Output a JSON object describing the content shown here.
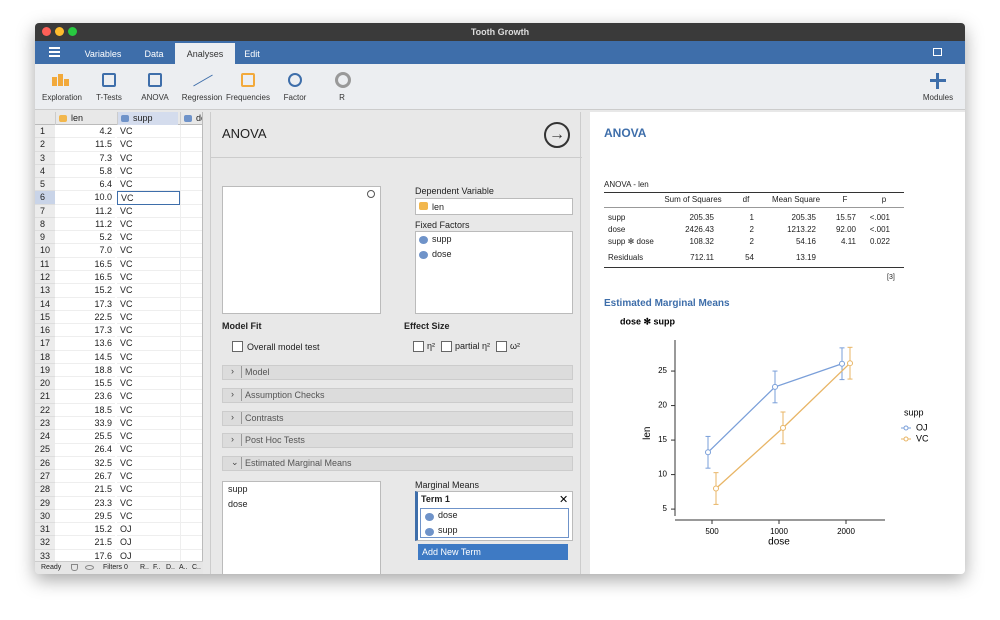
{
  "window": {
    "title": "Tooth Growth"
  },
  "menu": {
    "tabs": [
      "Variables",
      "Data",
      "Analyses",
      "Edit"
    ],
    "active": 2
  },
  "toolbar": {
    "items": [
      "Exploration",
      "T-Tests",
      "ANOVA",
      "Regression",
      "Frequencies",
      "Factor",
      "R"
    ],
    "modules": "Modules"
  },
  "spreadsheet": {
    "columns": [
      "len",
      "supp",
      "dose"
    ],
    "rows": [
      [
        1,
        "4.2",
        "VC"
      ],
      [
        2,
        "11.5",
        "VC"
      ],
      [
        3,
        "7.3",
        "VC"
      ],
      [
        4,
        "5.8",
        "VC"
      ],
      [
        5,
        "6.4",
        "VC"
      ],
      [
        6,
        "10.0",
        "VC"
      ],
      [
        7,
        "11.2",
        "VC"
      ],
      [
        8,
        "11.2",
        "VC"
      ],
      [
        9,
        "5.2",
        "VC"
      ],
      [
        10,
        "7.0",
        "VC"
      ],
      [
        11,
        "16.5",
        "VC"
      ],
      [
        12,
        "16.5",
        "VC"
      ],
      [
        13,
        "15.2",
        "VC"
      ],
      [
        14,
        "17.3",
        "VC"
      ],
      [
        15,
        "22.5",
        "VC"
      ],
      [
        16,
        "17.3",
        "VC"
      ],
      [
        17,
        "13.6",
        "VC"
      ],
      [
        18,
        "14.5",
        "VC"
      ],
      [
        19,
        "18.8",
        "VC"
      ],
      [
        20,
        "15.5",
        "VC"
      ],
      [
        21,
        "23.6",
        "VC"
      ],
      [
        22,
        "18.5",
        "VC"
      ],
      [
        23,
        "33.9",
        "VC"
      ],
      [
        24,
        "25.5",
        "VC"
      ],
      [
        25,
        "26.4",
        "VC"
      ],
      [
        26,
        "32.5",
        "VC"
      ],
      [
        27,
        "26.7",
        "VC"
      ],
      [
        28,
        "21.5",
        "VC"
      ],
      [
        29,
        "23.3",
        "VC"
      ],
      [
        30,
        "29.5",
        "VC"
      ],
      [
        31,
        "15.2",
        "OJ"
      ],
      [
        32,
        "21.5",
        "OJ"
      ],
      [
        33,
        "17.6",
        "OJ"
      ]
    ],
    "selected_row": 5
  },
  "status": {
    "ready": "Ready",
    "filters": "Filters 0",
    "columns": [
      "R..",
      "F..",
      "D..",
      "A..",
      "C.."
    ]
  },
  "options": {
    "title": "ANOVA",
    "dependent_label": "Dependent Variable",
    "dependent": "len",
    "factors_label": "Fixed Factors",
    "factors": [
      "supp",
      "dose"
    ],
    "model_fit": "Model Fit",
    "overall": "Overall model test",
    "effect_size": "Effect Size",
    "effects": [
      "η²",
      "partial η²",
      "ω²"
    ],
    "sections": [
      "Model",
      "Assumption Checks",
      "Contrasts",
      "Post Hoc Tests",
      "Estimated Marginal Means"
    ],
    "available": [
      "supp",
      "dose"
    ],
    "marginal_label": "Marginal Means",
    "term": "Term 1",
    "term_items": [
      "dose",
      "supp"
    ],
    "add_term": "Add New Term"
  },
  "results": {
    "title": "ANOVA",
    "table_title": "ANOVA - len",
    "headers": [
      "Sum of Squares",
      "df",
      "Mean Square",
      "F",
      "p"
    ],
    "rows": [
      [
        "supp",
        "205.35",
        "1",
        "205.35",
        "15.57",
        "<.001"
      ],
      [
        "dose",
        "2426.43",
        "2",
        "1213.22",
        "92.00",
        "<.001"
      ],
      [
        "supp ✻ dose",
        "108.32",
        "2",
        "54.16",
        "4.11",
        "0.022"
      ],
      [
        "Residuals",
        "712.11",
        "54",
        "13.19"
      ]
    ],
    "footnote": "[3]",
    "emm_title": "Estimated Marginal Means"
  },
  "chart_data": {
    "type": "line",
    "title": "dose ✻ supp",
    "x_label": "dose",
    "y_label": "len",
    "categories": [
      "500",
      "1000",
      "2000"
    ],
    "series": [
      {
        "name": "OJ",
        "color": "#7a9fd9",
        "values": [
          13.23,
          22.7,
          26.06
        ],
        "errors": [
          2.3,
          2.3,
          2.3
        ]
      },
      {
        "name": "VC",
        "color": "#e8b566",
        "values": [
          7.98,
          16.77,
          26.14
        ],
        "errors": [
          2.3,
          2.3,
          2.3
        ]
      }
    ],
    "ylim": [
      4,
      29.5
    ],
    "yticks": [
      5,
      10,
      15,
      20,
      25
    ],
    "legend_title": "supp"
  }
}
